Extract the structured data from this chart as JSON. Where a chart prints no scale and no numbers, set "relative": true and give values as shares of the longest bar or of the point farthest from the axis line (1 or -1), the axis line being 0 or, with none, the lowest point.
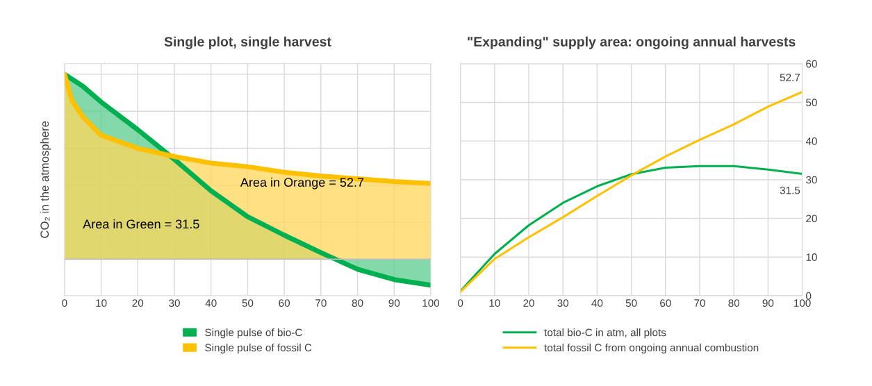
{
  "chart_data": [
    {
      "type": "area",
      "title": "Single plot, single harvest",
      "ylabel": "CO₂ in the atmosphere",
      "relative": true,
      "xlim": [
        0,
        100
      ],
      "xticks": [
        0,
        10,
        20,
        30,
        40,
        50,
        60,
        70,
        80,
        90,
        100
      ],
      "tick_labels": "x",
      "grid": true,
      "legend": "bottom",
      "series": [
        {
          "name": "Single pulse of bio-C",
          "color": "#00b050",
          "x": [
            0,
            5,
            10,
            20,
            30,
            40,
            50,
            60,
            70,
            80,
            90,
            100
          ],
          "values": [
            1.0,
            0.935,
            0.85,
            0.7,
            0.54,
            0.37,
            0.23,
            0.13,
            0.036,
            -0.054,
            -0.11,
            -0.14
          ]
        },
        {
          "name": "Single pulse of fossil C",
          "color": "#ffc000",
          "x": [
            0,
            2,
            5,
            10,
            20,
            30,
            40,
            50,
            60,
            70,
            80,
            90,
            100
          ],
          "values": [
            1.0,
            0.86,
            0.77,
            0.67,
            0.6,
            0.555,
            0.52,
            0.5,
            0.47,
            0.45,
            0.435,
            0.42,
            0.41
          ]
        }
      ],
      "annotations": [
        "Area in Green = 31.5",
        "Area in Orange = 52.7"
      ]
    },
    {
      "type": "line",
      "title": "\"Expanding\" supply area: ongoing annual harvests",
      "xlim": [
        0,
        100
      ],
      "xticks": [
        0,
        10,
        20,
        30,
        40,
        50,
        60,
        70,
        80,
        90,
        100
      ],
      "ylim": [
        0,
        60
      ],
      "yticks": [
        0,
        10,
        20,
        30,
        40,
        50,
        60
      ],
      "grid": true,
      "legend": "bottom",
      "x": [
        0,
        10,
        20,
        30,
        40,
        50,
        60,
        70,
        80,
        90,
        100
      ],
      "series": [
        {
          "name": "total bio-C in atm, all plots",
          "color": "#00b050",
          "values": [
            1.2,
            10.8,
            18.2,
            24.0,
            28.3,
            31.4,
            33.1,
            33.5,
            33.5,
            32.6,
            31.5
          ]
        },
        {
          "name": "total fossil C from ongoing annual combustion",
          "color": "#ffc000",
          "values": [
            1.0,
            9.5,
            15.1,
            20.3,
            25.8,
            31.1,
            36.0,
            40.3,
            44.3,
            48.9,
            52.7
          ]
        }
      ],
      "annotations": [
        {
          "text": "52.7",
          "x": 100,
          "y": 52.7
        },
        {
          "text": "31.5",
          "x": 100,
          "y": 31.5
        }
      ]
    }
  ]
}
